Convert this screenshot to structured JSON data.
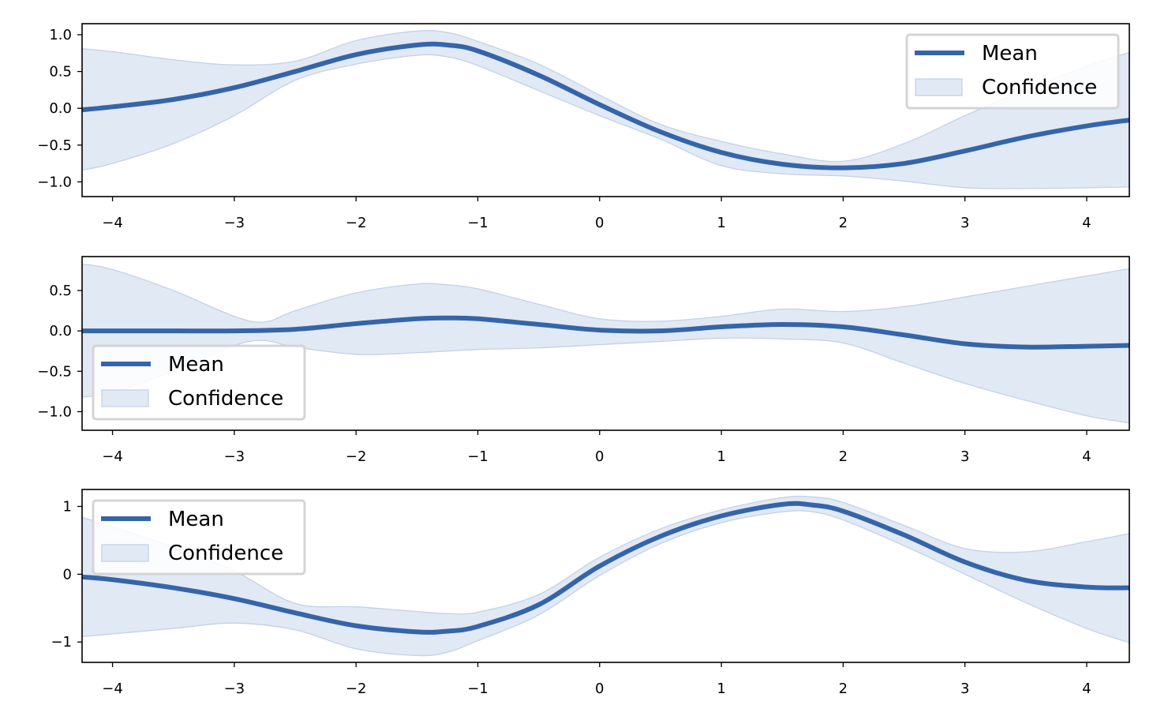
{
  "colors": {
    "mean_line": "#3565a8",
    "band_fill": "#e1e9f5",
    "band_edge": "#c3d2e6",
    "legend_border": "#d4d4d4",
    "axis": "#000000"
  },
  "chart_data": [
    {
      "type": "line",
      "xlim": [
        -4.25,
        4.35
      ],
      "ylim": [
        -1.2,
        1.15
      ],
      "xticks": [
        -4,
        -3,
        -2,
        -1,
        0,
        1,
        2,
        3,
        4
      ],
      "xtick_labels": [
        "−4",
        "−3",
        "−2",
        "−1",
        "0",
        "1",
        "2",
        "3",
        "4"
      ],
      "yticks": [
        1.0,
        0.5,
        0.0,
        -0.5,
        -1.0
      ],
      "ytick_labels": [
        "1.0",
        "0.5",
        "0.0",
        "−0.5",
        "−1.0"
      ],
      "legend": {
        "position": "upper right",
        "entries": [
          "Mean",
          "Confidence"
        ]
      },
      "series": [
        {
          "name": "Mean",
          "x": [
            -4.25,
            -4.0,
            -3.5,
            -3.0,
            -2.5,
            -2.0,
            -1.5,
            -1.25,
            -1.0,
            -0.5,
            0.0,
            0.5,
            1.0,
            1.5,
            2.0,
            2.5,
            3.0,
            3.5,
            4.0,
            4.35
          ],
          "y": [
            -0.02,
            0.02,
            0.12,
            0.28,
            0.5,
            0.73,
            0.86,
            0.86,
            0.78,
            0.45,
            0.05,
            -0.32,
            -0.6,
            -0.76,
            -0.81,
            -0.75,
            -0.58,
            -0.39,
            -0.24,
            -0.16
          ]
        },
        {
          "name": "Confidence",
          "x": [
            -4.25,
            -4.0,
            -3.5,
            -3.0,
            -2.5,
            -2.0,
            -1.5,
            -1.25,
            -1.0,
            -0.5,
            0.0,
            0.5,
            1.0,
            1.5,
            2.0,
            2.5,
            3.0,
            3.5,
            4.0,
            4.35
          ],
          "lower": [
            -0.84,
            -0.75,
            -0.48,
            -0.1,
            0.38,
            0.6,
            0.72,
            0.7,
            0.58,
            0.24,
            -0.1,
            -0.42,
            -0.78,
            -0.89,
            -0.92,
            -0.99,
            -1.08,
            -1.09,
            -1.08,
            -1.07
          ],
          "upper": [
            0.81,
            0.77,
            0.66,
            0.59,
            0.64,
            0.92,
            1.05,
            1.03,
            0.91,
            0.6,
            0.18,
            -0.22,
            -0.45,
            -0.62,
            -0.72,
            -0.48,
            -0.1,
            0.25,
            0.57,
            0.76
          ]
        }
      ]
    },
    {
      "type": "line",
      "xlim": [
        -4.25,
        4.35
      ],
      "ylim": [
        -1.23,
        0.92
      ],
      "xticks": [
        -4,
        -3,
        -2,
        -1,
        0,
        1,
        2,
        3,
        4
      ],
      "xtick_labels": [
        "−4",
        "−3",
        "−2",
        "−1",
        "0",
        "1",
        "2",
        "3",
        "4"
      ],
      "yticks": [
        0.5,
        0.0,
        -0.5,
        -1.0
      ],
      "ytick_labels": [
        "0.5",
        "0.0",
        "−0.5",
        "−1.0"
      ],
      "legend": {
        "position": "lower left",
        "entries": [
          "Mean",
          "Confidence"
        ]
      },
      "series": [
        {
          "name": "Mean",
          "x": [
            -4.25,
            -4.0,
            -3.5,
            -3.0,
            -2.5,
            -2.0,
            -1.5,
            -1.25,
            -1.0,
            -0.5,
            0.0,
            0.5,
            1.0,
            1.5,
            2.0,
            2.5,
            3.0,
            3.5,
            4.0,
            4.35
          ],
          "y": [
            0.0,
            0.0,
            0.0,
            0.0,
            0.02,
            0.09,
            0.15,
            0.16,
            0.15,
            0.08,
            0.01,
            0.0,
            0.05,
            0.08,
            0.05,
            -0.05,
            -0.16,
            -0.2,
            -0.19,
            -0.18
          ]
        },
        {
          "name": "Confidence",
          "x": [
            -4.25,
            -4.0,
            -3.5,
            -3.0,
            -2.75,
            -2.5,
            -2.0,
            -1.5,
            -1.25,
            -1.0,
            -0.5,
            0.0,
            0.5,
            1.0,
            1.5,
            2.0,
            2.5,
            3.0,
            3.5,
            4.0,
            4.35
          ],
          "lower": [
            -0.82,
            -0.76,
            -0.5,
            -0.18,
            -0.12,
            -0.2,
            -0.29,
            -0.27,
            -0.25,
            -0.23,
            -0.21,
            -0.17,
            -0.13,
            -0.09,
            -0.1,
            -0.15,
            -0.4,
            -0.65,
            -0.86,
            -1.05,
            -1.14
          ],
          "upper": [
            0.83,
            0.76,
            0.5,
            0.18,
            0.11,
            0.25,
            0.47,
            0.58,
            0.57,
            0.52,
            0.33,
            0.15,
            0.12,
            0.18,
            0.27,
            0.24,
            0.3,
            0.42,
            0.55,
            0.68,
            0.77
          ]
        }
      ]
    },
    {
      "type": "line",
      "xlim": [
        -4.25,
        4.35
      ],
      "ylim": [
        -1.3,
        1.25
      ],
      "xticks": [
        -4,
        -3,
        -2,
        -1,
        0,
        1,
        2,
        3,
        4
      ],
      "xtick_labels": [
        "−4",
        "−3",
        "−2",
        "−1",
        "0",
        "1",
        "2",
        "3",
        "4"
      ],
      "yticks": [
        1,
        0,
        -1
      ],
      "ytick_labels": [
        "1",
        "0",
        "−1"
      ],
      "legend": {
        "position": "upper left",
        "entries": [
          "Mean",
          "Confidence"
        ]
      },
      "series": [
        {
          "name": "Mean",
          "x": [
            -4.25,
            -4.0,
            -3.5,
            -3.0,
            -2.5,
            -2.0,
            -1.5,
            -1.25,
            -1.0,
            -0.5,
            0.0,
            0.5,
            1.0,
            1.5,
            1.75,
            2.0,
            2.5,
            3.0,
            3.5,
            4.0,
            4.35
          ],
          "y": [
            -0.04,
            -0.08,
            -0.2,
            -0.36,
            -0.57,
            -0.76,
            -0.85,
            -0.84,
            -0.77,
            -0.45,
            0.12,
            0.56,
            0.86,
            1.03,
            1.02,
            0.93,
            0.58,
            0.18,
            -0.09,
            -0.19,
            -0.2
          ]
        },
        {
          "name": "Confidence",
          "x": [
            -4.25,
            -4.0,
            -3.5,
            -3.0,
            -2.5,
            -2.0,
            -1.5,
            -1.25,
            -1.0,
            -0.5,
            0.0,
            0.5,
            1.0,
            1.5,
            1.75,
            2.0,
            2.5,
            3.0,
            3.5,
            4.0,
            4.35
          ],
          "lower": [
            -0.92,
            -0.88,
            -0.8,
            -0.72,
            -0.82,
            -1.1,
            -1.2,
            -1.15,
            -0.98,
            -0.6,
            -0.02,
            0.45,
            0.76,
            0.92,
            0.92,
            0.8,
            0.42,
            0.0,
            -0.42,
            -0.8,
            -1.01
          ],
          "upper": [
            0.84,
            0.7,
            0.4,
            0.05,
            -0.43,
            -0.48,
            -0.55,
            -0.58,
            -0.56,
            -0.3,
            0.25,
            0.67,
            0.95,
            1.13,
            1.14,
            1.06,
            0.72,
            0.38,
            0.33,
            0.48,
            0.6
          ]
        }
      ]
    }
  ]
}
